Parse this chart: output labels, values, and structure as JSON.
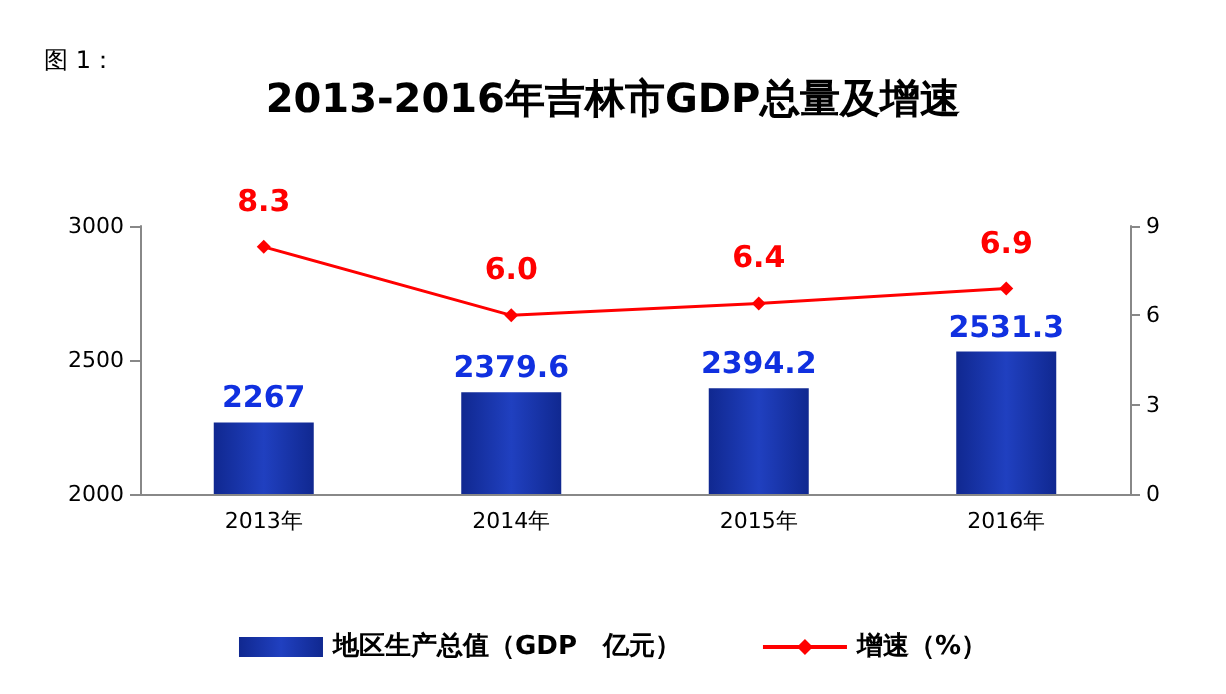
{
  "chart_data": {
    "type": "bar",
    "title": "2013-2016年吉林市GDP总量及增速",
    "annotations": [
      "图 1："
    ],
    "categories": [
      "2013年",
      "2014年",
      "2015年",
      "2016年"
    ],
    "series": [
      {
        "name": "地区生产总值（GDP　亿元）",
        "color": "#2040c0",
        "values": [
          2267,
          2379.6,
          2394.2,
          2531.3
        ]
      },
      {
        "name": "增速（%）",
        "type": "line",
        "axis": "y2",
        "color": "#ff0000",
        "values": [
          8.3,
          6.0,
          6.4,
          6.9
        ],
        "value_labels": [
          "8.3",
          "6.0",
          "6.4",
          "6.9"
        ],
        "marker": "diamond"
      }
    ],
    "ylim": [
      2000,
      3000
    ],
    "yticks": [
      2000,
      2500,
      3000
    ],
    "y2lim": [
      0,
      9
    ],
    "y2ticks": [
      0,
      3,
      6,
      9
    ],
    "data_labels": true,
    "grid": false,
    "legend": "bottom"
  }
}
